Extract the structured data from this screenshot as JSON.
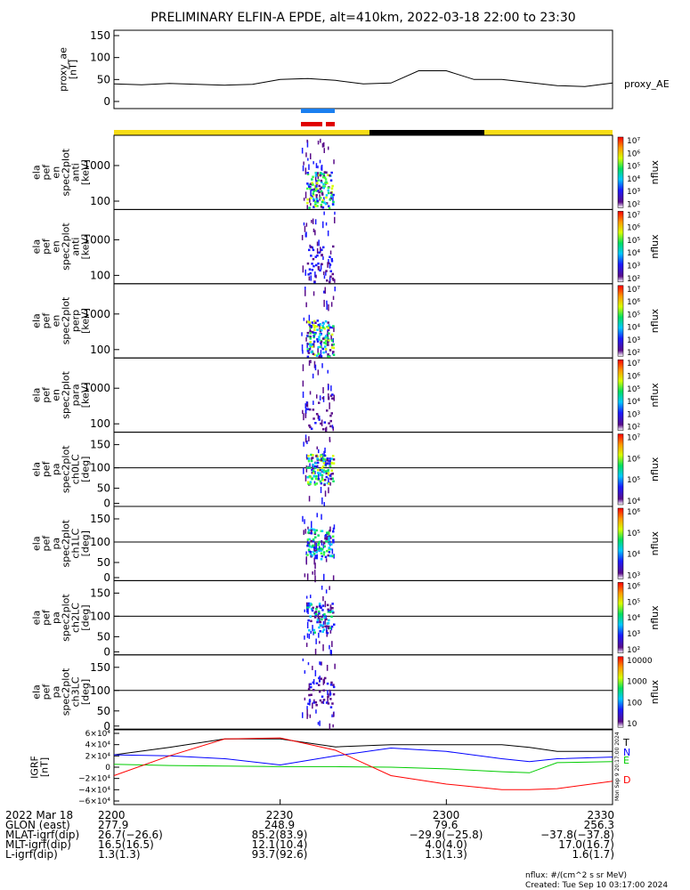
{
  "title": "PRELIMINARY ELFIN-A EPDE, alt=410km, 2022-03-18 22:00 to 23:30",
  "chart_data": [
    {
      "type": "line",
      "id": "proxy_ae",
      "ylabel": [
        "proxy_ae",
        "[nT]"
      ],
      "yticks": [
        "150",
        "100",
        "50",
        "0"
      ],
      "ylim": [
        0,
        150
      ],
      "series_label": "proxy_AE",
      "x_minutes": [
        0,
        5,
        10,
        15,
        20,
        25,
        30,
        35,
        40,
        45,
        50,
        55,
        60,
        65,
        70,
        75,
        80,
        85,
        90
      ],
      "values": [
        40,
        38,
        41,
        39,
        37,
        39,
        50,
        52,
        48,
        40,
        42,
        70,
        70,
        50,
        50,
        43,
        36,
        34,
        42
      ]
    },
    {
      "type": "heatmap",
      "id": "antiperp",
      "ylabel": [
        "ela",
        "pef",
        "en",
        "spec2plot",
        "anti",
        "[keV]"
      ],
      "yticks": [
        "1000",
        "100"
      ],
      "colorbar_ticks": [
        "10⁷",
        "10⁶",
        "10⁵",
        "10⁴",
        "10³",
        "10²"
      ],
      "colorbar_label": "nflux"
    },
    {
      "type": "heatmap",
      "id": "anti",
      "ylabel": [
        "ela",
        "pef",
        "en",
        "spec2plot",
        "anti",
        "[keV]"
      ],
      "yticks": [
        "1000",
        "100"
      ],
      "colorbar_ticks": [
        "10⁷",
        "10⁶",
        "10⁵",
        "10⁴",
        "10³",
        "10²"
      ],
      "colorbar_label": "nflux"
    },
    {
      "type": "heatmap",
      "id": "perp",
      "ylabel": [
        "ela",
        "pef",
        "en",
        "spec2plot",
        "perp",
        "[keV]"
      ],
      "yticks": [
        "1000",
        "100"
      ],
      "colorbar_ticks": [
        "10⁷",
        "10⁶",
        "10⁵",
        "10⁴",
        "10³",
        "10²"
      ],
      "colorbar_label": "nflux"
    },
    {
      "type": "heatmap",
      "id": "para",
      "ylabel": [
        "ela",
        "pef",
        "en",
        "spec2plot",
        "para",
        "[keV]"
      ],
      "yticks": [
        "1000",
        "100"
      ],
      "colorbar_ticks": [
        "10⁷",
        "10⁶",
        "10⁵",
        "10⁴",
        "10³",
        "10²"
      ],
      "colorbar_label": "nflux"
    },
    {
      "type": "heatmap",
      "id": "ch0LC",
      "ylabel": [
        "ela",
        "pef",
        "pa",
        "spec2plot",
        "ch0LC",
        "[deg]"
      ],
      "yticks": [
        "150",
        "100",
        "50",
        "0"
      ],
      "colorbar_ticks": [
        "10⁷",
        "10⁶",
        "10⁵",
        "10⁴"
      ],
      "colorbar_label": "nflux"
    },
    {
      "type": "heatmap",
      "id": "ch1LC",
      "ylabel": [
        "ela",
        "pef",
        "pa",
        "spec2plot",
        "ch1LC",
        "[deg]"
      ],
      "yticks": [
        "150",
        "100",
        "50",
        "0"
      ],
      "colorbar_ticks": [
        "10⁶",
        "10⁵",
        "10⁴",
        "10³"
      ],
      "colorbar_label": "nflux"
    },
    {
      "type": "heatmap",
      "id": "ch2LC",
      "ylabel": [
        "ela",
        "pef",
        "pa",
        "spec2plot",
        "ch2LC",
        "[deg]"
      ],
      "yticks": [
        "150",
        "100",
        "50",
        "0"
      ],
      "colorbar_ticks": [
        "10⁶",
        "10⁵",
        "10⁴",
        "10³",
        "10²"
      ],
      "colorbar_label": "nflux"
    },
    {
      "type": "heatmap",
      "id": "ch3LC",
      "ylabel": [
        "ela",
        "pef",
        "pa",
        "spec2plot",
        "ch3LC",
        "[deg]"
      ],
      "yticks": [
        "150",
        "100",
        "50",
        "0"
      ],
      "colorbar_ticks": [
        "10000",
        "1000",
        "100",
        "10"
      ],
      "colorbar_label": "nflux"
    },
    {
      "type": "line",
      "id": "igrf",
      "ylabel": [
        "IGRF",
        "[nT]"
      ],
      "yticks": [
        "6×10⁴",
        "4×10⁴",
        "2×10⁴",
        "0",
        "−2×10⁴",
        "−4×10⁴",
        "−6×10⁴"
      ],
      "ylim": [
        -60000,
        60000
      ],
      "x_minutes": [
        0,
        10,
        20,
        30,
        40,
        50,
        60,
        70,
        75,
        80,
        90
      ],
      "series": [
        {
          "name": "T",
          "color": "#000000",
          "values": [
            22000,
            35000,
            50000,
            50000,
            36000,
            40000,
            40000,
            40000,
            35000,
            28000,
            28000
          ]
        },
        {
          "name": "N",
          "color": "#0000ff",
          "values": [
            22000,
            20000,
            15000,
            4000,
            20000,
            34000,
            28000,
            15000,
            10000,
            15000,
            18000
          ]
        },
        {
          "name": "E",
          "color": "#00cc00",
          "values": [
            5000,
            3000,
            2000,
            1000,
            1000,
            0,
            -3000,
            -8000,
            -10000,
            8000,
            10000
          ]
        },
        {
          "name": "D",
          "color": "#ff0000",
          "values": [
            -15000,
            20000,
            50000,
            52000,
            30000,
            -15000,
            -30000,
            -40000,
            -40000,
            -38000,
            -25000
          ]
        }
      ]
    }
  ],
  "bars": {
    "top_colors": [
      "#1a7ff0",
      "#e00000"
    ],
    "day_night_colors": [
      "#f7dd16",
      "#000000"
    ]
  },
  "xaxis": {
    "ticks": [
      "2200",
      "2230",
      "2300",
      "2330"
    ]
  },
  "footer": {
    "rows": [
      {
        "label": "2022 Mar 18",
        "values": [
          "2200",
          "2230",
          "2300",
          "2330"
        ]
      },
      {
        "label": "GLON (east)",
        "values": [
          "277.9",
          "248.9",
          "79.6",
          "256.3"
        ]
      },
      {
        "label": "MLAT-igrf(dip)",
        "values": [
          "26.7(−26.6)",
          "85.2(83.9)",
          "−29.9(−25.8)",
          "−37.8(−37.8)"
        ]
      },
      {
        "label": "MLT-igrf(dip)",
        "values": [
          "16.5(16.5)",
          "12.1(10.4)",
          "4.0(4.0)",
          "17.0(16.7)"
        ]
      },
      {
        "label": "L-igrf(dip)",
        "values": [
          "1.3(1.3)",
          "93.7(92.6)",
          "1.3(1.3)",
          "1.6(1.7)"
        ]
      }
    ],
    "units_note": "nflux: #/(cm^2 s sr MeV)",
    "created": "Created: Tue Sep 10 03:17:00 2024",
    "side_stamp": "Mon Sep 9 20:17:00 2024"
  }
}
